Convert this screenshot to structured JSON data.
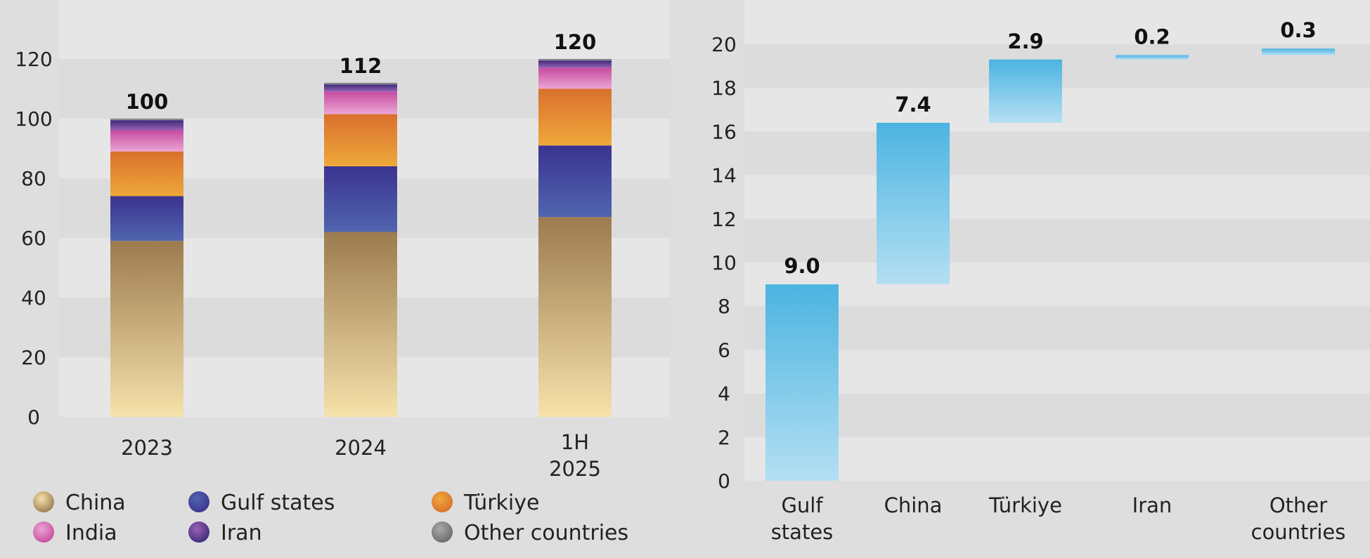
{
  "chart_data": [
    {
      "type": "bar",
      "stacked": true,
      "categories": [
        "2023",
        "2024",
        "1H\n2025"
      ],
      "totals": [
        "100",
        "112",
        "120"
      ],
      "ylim": [
        0,
        130
      ],
      "yticks": [
        0,
        20,
        40,
        60,
        80,
        100,
        120
      ],
      "series": [
        {
          "name": "China",
          "values": [
            59,
            62,
            67
          ],
          "colors": [
            "#f6e2ab",
            "#9c7b4f"
          ]
        },
        {
          "name": "Gulf states",
          "values": [
            15,
            22,
            24
          ],
          "colors": [
            "#5165ae",
            "#3a3390"
          ]
        },
        {
          "name": "Türkiye",
          "values": [
            15,
            17.5,
            19
          ],
          "colors": [
            "#eea83a",
            "#d9702e"
          ]
        },
        {
          "name": "India",
          "values": [
            7,
            7.5,
            7
          ],
          "colors": [
            "#eba5d4",
            "#c64da0"
          ]
        },
        {
          "name": "Iran",
          "values": [
            3.5,
            2.5,
            2.5
          ],
          "colors": [
            "#9b62b3",
            "#3d2b7a"
          ]
        },
        {
          "name": "Other countries",
          "values": [
            0.5,
            0.5,
            0.5
          ],
          "colors": [
            "#aaaaaa",
            "#6a6a6a"
          ]
        }
      ],
      "legend": "bottom",
      "grid": true
    },
    {
      "type": "bar",
      "waterfall": true,
      "categories": [
        "Gulf\nstates",
        "China",
        "Türkiye",
        "Iran",
        "Other\ncountries"
      ],
      "values": [
        9.0,
        7.4,
        2.9,
        0.2,
        0.3
      ],
      "labels": [
        "9.0",
        "7.4",
        "2.9",
        "0.2",
        "0.3"
      ],
      "ylim": [
        0,
        22
      ],
      "yticks": [
        0,
        2,
        4,
        6,
        8,
        10,
        12,
        14,
        16,
        18,
        20
      ],
      "colors": [
        "#4cb4e1",
        "#b4dff2"
      ],
      "grid": true
    }
  ]
}
